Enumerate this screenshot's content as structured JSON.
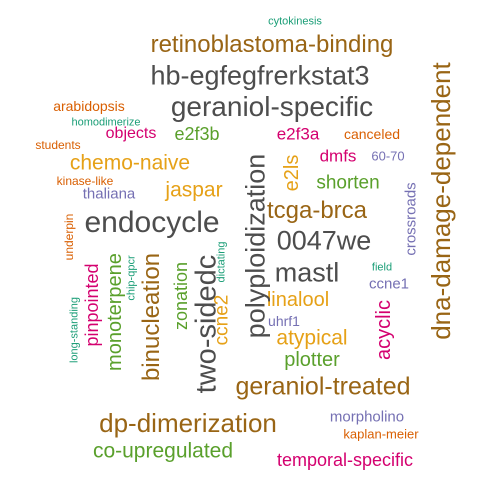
{
  "colors": {
    "brown": "#996515",
    "gray": "#4d4d4d",
    "gold": "#e6a117",
    "green": "#5aa02c",
    "magenta": "#d4006f",
    "orange": "#d95f02",
    "purple": "#7570b3",
    "teal": "#1b9e77"
  },
  "words": [
    {
      "text": "cytokinesis",
      "color": "teal"
    },
    {
      "text": "retinoblastoma-binding",
      "color": "brown"
    },
    {
      "text": "hb-egfegfrerkstat3",
      "color": "gray"
    },
    {
      "text": "geraniol-specific",
      "color": "gray"
    },
    {
      "text": "arabidopsis",
      "color": "orange"
    },
    {
      "text": "homodimerize",
      "color": "teal"
    },
    {
      "text": "objects",
      "color": "magenta"
    },
    {
      "text": "e2f3b",
      "color": "green"
    },
    {
      "text": "e2f3a",
      "color": "magenta"
    },
    {
      "text": "canceled",
      "color": "orange"
    },
    {
      "text": "students",
      "color": "orange"
    },
    {
      "text": "dmfs",
      "color": "magenta"
    },
    {
      "text": "60-70",
      "color": "purple"
    },
    {
      "text": "chemo-naive",
      "color": "gold"
    },
    {
      "text": "kinase-like",
      "color": "orange"
    },
    {
      "text": "thaliana",
      "color": "purple"
    },
    {
      "text": "jaspar",
      "color": "gold"
    },
    {
      "text": "shorten",
      "color": "green"
    },
    {
      "text": "e2ls",
      "color": "gold"
    },
    {
      "text": "endocycle",
      "color": "gray"
    },
    {
      "text": "tcga-brca",
      "color": "brown"
    },
    {
      "text": "0047we",
      "color": "gray"
    },
    {
      "text": "mastl",
      "color": "gray"
    },
    {
      "text": "linalool",
      "color": "gold"
    },
    {
      "text": "ccne1",
      "color": "purple"
    },
    {
      "text": "uhrf1",
      "color": "purple"
    },
    {
      "text": "atypical",
      "color": "gold"
    },
    {
      "text": "plotter",
      "color": "green"
    },
    {
      "text": "geraniol-treated",
      "color": "brown"
    },
    {
      "text": "dp-dimerization",
      "color": "brown"
    },
    {
      "text": "morpholino",
      "color": "purple"
    },
    {
      "text": "kaplan-meier",
      "color": "orange"
    },
    {
      "text": "co-upregulated",
      "color": "green"
    },
    {
      "text": "temporal-specific",
      "color": "magenta"
    },
    {
      "text": "polyploidization",
      "color": "gray"
    },
    {
      "text": "two-sidedc",
      "color": "gray"
    },
    {
      "text": "binucleation",
      "color": "brown"
    },
    {
      "text": "monoterpene",
      "color": "green"
    },
    {
      "text": "pinpointed",
      "color": "magenta"
    },
    {
      "text": "underpin",
      "color": "orange"
    },
    {
      "text": "chip-qpcr",
      "color": "teal"
    },
    {
      "text": "long-standing",
      "color": "teal"
    },
    {
      "text": "zonation",
      "color": "green"
    },
    {
      "text": "ccne2",
      "color": "gold"
    },
    {
      "text": "dictating",
      "color": "teal"
    },
    {
      "text": "dna-damage-dependent",
      "color": "brown"
    },
    {
      "text": "crossroads",
      "color": "purple"
    },
    {
      "text": "field",
      "color": "teal"
    },
    {
      "text": "acyclic",
      "color": "magenta"
    }
  ]
}
